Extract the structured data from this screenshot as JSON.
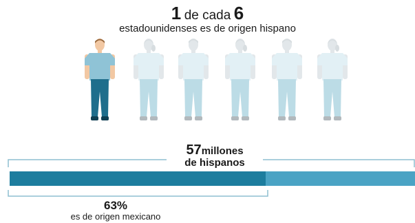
{
  "headline": {
    "numerator": "1",
    "connector": "de cada",
    "denominator": "6"
  },
  "subhead": "estadounidenses es de origen hispano",
  "people": {
    "total": 6,
    "highlighted": 1,
    "figures": [
      "male",
      "female",
      "male",
      "female",
      "male",
      "female"
    ]
  },
  "colors": {
    "highlight_skin": "#f2c8a3",
    "highlight_shirt": "#8fc3d6",
    "highlight_pants": "#1f6e8c",
    "highlight_shoe": "#0f3f52",
    "muted_skin": "#e2e7ea",
    "muted_shirt": "#e2f0f5",
    "muted_pants": "#bcdce6",
    "muted_shoe": "#b2b9bd",
    "bar_highlight": "#1d7d9e",
    "bar_rest": "#4aa3c4",
    "bracket": "#8dbfd0"
  },
  "total": {
    "number": "57",
    "unit": "millones",
    "line2": "de hispanos"
  },
  "share": {
    "percent_label": "63%",
    "text": "es de origen mexicano",
    "fraction": 0.63
  }
}
